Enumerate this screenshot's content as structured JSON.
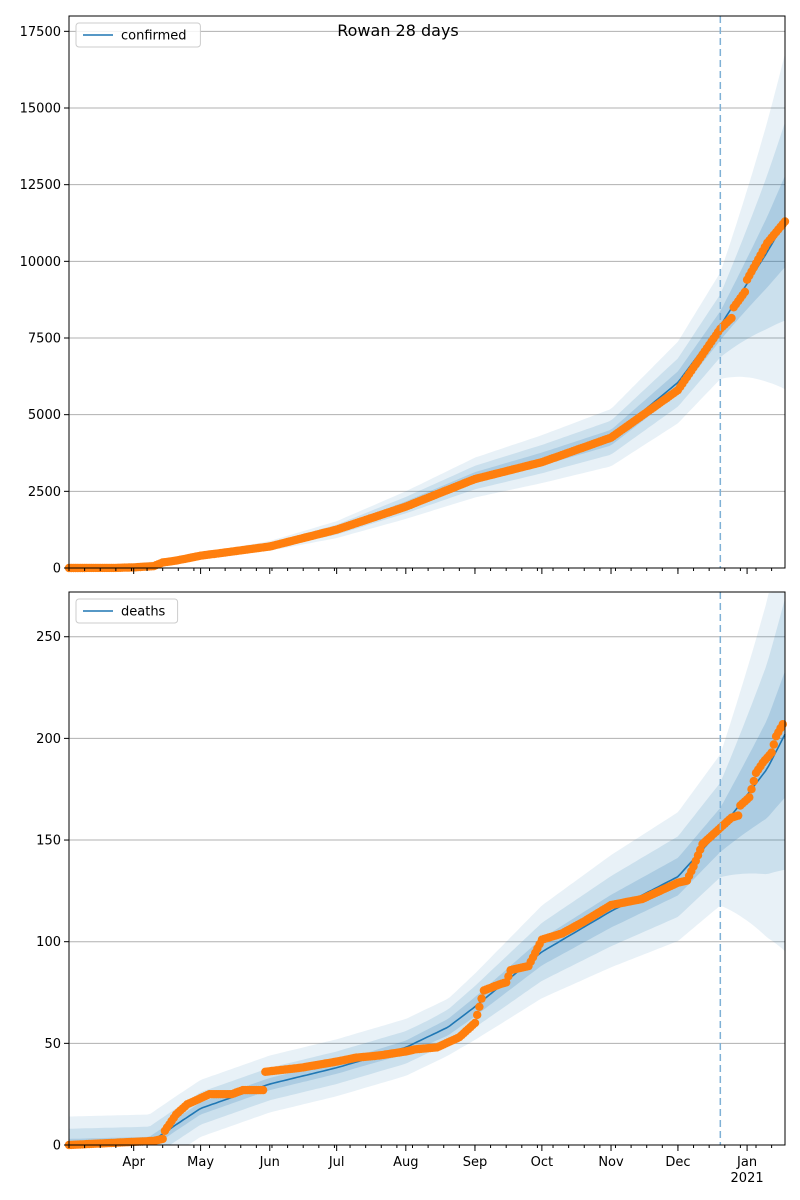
{
  "title": "Rowan 28 days",
  "colors": {
    "model_line": "#1f77b4",
    "observed_points": "#ff7f0e",
    "band": "#1f77b4",
    "forecast_marker": "#7fb1d6",
    "grid": "#b0b0b0"
  },
  "x_axis": {
    "start": "2020-03-03",
    "end": "2021-01-18",
    "month_ticks": [
      {
        "label": "Apr",
        "date": "2020-04-01"
      },
      {
        "label": "May",
        "date": "2020-05-01"
      },
      {
        "label": "Jun",
        "date": "2020-06-01"
      },
      {
        "label": "Jul",
        "date": "2020-07-01"
      },
      {
        "label": "Aug",
        "date": "2020-08-01"
      },
      {
        "label": "Sep",
        "date": "2020-09-01"
      },
      {
        "label": "Oct",
        "date": "2020-10-01"
      },
      {
        "label": "Nov",
        "date": "2020-11-01"
      },
      {
        "label": "Dec",
        "date": "2020-12-01"
      },
      {
        "label": "Jan",
        "date": "2021-01-01"
      }
    ],
    "year_label": {
      "label": "2021",
      "date": "2021-01-01"
    },
    "forecast_start": "2020-12-20"
  },
  "chart_data": [
    {
      "type": "line",
      "legend": "confirmed",
      "legend_position": "top-left",
      "grid": "y",
      "ylim": [
        0,
        18000
      ],
      "yticks": [
        "0",
        "2500",
        "5000",
        "7500",
        "10000",
        "12500",
        "15000",
        "17500"
      ],
      "model_knots": [
        [
          "2020-03-03",
          0
        ],
        [
          "2020-03-20",
          10
        ],
        [
          "2020-04-10",
          140
        ],
        [
          "2020-05-01",
          400
        ],
        [
          "2020-06-01",
          720
        ],
        [
          "2020-07-01",
          1250
        ],
        [
          "2020-08-01",
          2050
        ],
        [
          "2020-09-01",
          2950
        ],
        [
          "2020-10-01",
          3550
        ],
        [
          "2020-11-01",
          4250
        ],
        [
          "2020-12-01",
          6050
        ],
        [
          "2020-12-20",
          7900
        ],
        [
          "2021-01-10",
          10300
        ],
        [
          "2021-01-18",
          11300
        ]
      ],
      "band_rel": [
        0.06,
        0.13,
        0.22
      ],
      "band_floor": [
        20,
        40,
        70
      ],
      "observed": [
        [
          "2020-03-03",
          0
        ],
        [
          "2020-03-25",
          5
        ],
        [
          "2020-04-01",
          20
        ],
        [
          "2020-04-10",
          60
        ],
        [
          "2020-04-14",
          180
        ],
        [
          "2020-04-20",
          240
        ],
        [
          "2020-05-01",
          400
        ],
        [
          "2020-06-01",
          700
        ],
        [
          "2020-07-01",
          1250
        ],
        [
          "2020-08-01",
          2000
        ],
        [
          "2020-09-01",
          2900
        ],
        [
          "2020-10-01",
          3450
        ],
        [
          "2020-11-01",
          4250
        ],
        [
          "2020-12-01",
          5800
        ],
        [
          "2020-12-20",
          7800
        ],
        [
          "2020-12-25",
          8150
        ],
        [
          "2020-12-26",
          8500
        ],
        [
          "2020-12-31",
          9000
        ],
        [
          "2021-01-01",
          9400
        ],
        [
          "2021-01-07",
          10200
        ],
        [
          "2021-01-10",
          10600
        ],
        [
          "2021-01-18",
          11300
        ]
      ]
    },
    {
      "type": "line",
      "legend": "deaths",
      "legend_position": "top-left",
      "grid": "y",
      "ylim": [
        0,
        272
      ],
      "yticks": [
        "0",
        "50",
        "100",
        "150",
        "200",
        "250"
      ],
      "model_knots": [
        [
          "2020-03-03",
          0
        ],
        [
          "2020-04-08",
          1
        ],
        [
          "2020-04-20",
          10
        ],
        [
          "2020-05-01",
          18
        ],
        [
          "2020-06-01",
          30
        ],
        [
          "2020-07-01",
          38
        ],
        [
          "2020-08-01",
          48
        ],
        [
          "2020-08-20",
          58
        ],
        [
          "2020-09-01",
          68
        ],
        [
          "2020-10-01",
          95
        ],
        [
          "2020-11-01",
          115
        ],
        [
          "2020-12-01",
          132
        ],
        [
          "2020-12-20",
          155
        ],
        [
          "2021-01-10",
          185
        ],
        [
          "2021-01-18",
          202
        ]
      ],
      "band_rel": [
        0.07,
        0.15,
        0.24
      ],
      "band_floor": [
        3,
        8,
        14
      ],
      "observed": [
        [
          "2020-03-03",
          0
        ],
        [
          "2020-04-10",
          2
        ],
        [
          "2020-04-14",
          3
        ],
        [
          "2020-04-15",
          7
        ],
        [
          "2020-04-20",
          15
        ],
        [
          "2020-04-25",
          20
        ],
        [
          "2020-05-05",
          25
        ],
        [
          "2020-05-15",
          25
        ],
        [
          "2020-05-20",
          27
        ],
        [
          "2020-05-29",
          27
        ],
        [
          "2020-05-30",
          36
        ],
        [
          "2020-06-15",
          38
        ],
        [
          "2020-07-01",
          41
        ],
        [
          "2020-07-10",
          43
        ],
        [
          "2020-07-20",
          44
        ],
        [
          "2020-08-01",
          46
        ],
        [
          "2020-08-05",
          47
        ],
        [
          "2020-08-15",
          48
        ],
        [
          "2020-08-25",
          53
        ],
        [
          "2020-09-01",
          60
        ],
        [
          "2020-09-05",
          76
        ],
        [
          "2020-09-12",
          79
        ],
        [
          "2020-09-15",
          80
        ],
        [
          "2020-09-17",
          86
        ],
        [
          "2020-09-25",
          88
        ],
        [
          "2020-10-01",
          101
        ],
        [
          "2020-10-10",
          104
        ],
        [
          "2020-10-20",
          110
        ],
        [
          "2020-11-01",
          118
        ],
        [
          "2020-11-15",
          121
        ],
        [
          "2020-12-01",
          129
        ],
        [
          "2020-12-05",
          130
        ],
        [
          "2020-12-08",
          137
        ],
        [
          "2020-12-12",
          148
        ],
        [
          "2020-12-20",
          156
        ],
        [
          "2020-12-25",
          161
        ],
        [
          "2020-12-28",
          162
        ],
        [
          "2020-12-29",
          167
        ],
        [
          "2021-01-02",
          171
        ],
        [
          "2021-01-05",
          183
        ],
        [
          "2021-01-08",
          188
        ],
        [
          "2021-01-12",
          193
        ],
        [
          "2021-01-14",
          201
        ],
        [
          "2021-01-17",
          207
        ]
      ]
    }
  ]
}
